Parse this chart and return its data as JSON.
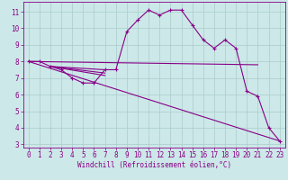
{
  "xlabel": "Windchill (Refroidissement éolien,°C)",
  "background_color": "#cce8e8",
  "grid_color": "#aacccc",
  "line_color": "#880088",
  "xlim": [
    -0.5,
    23.5
  ],
  "ylim": [
    2.8,
    11.6
  ],
  "yticks": [
    3,
    4,
    5,
    6,
    7,
    8,
    9,
    10,
    11
  ],
  "xticks": [
    0,
    1,
    2,
    3,
    4,
    5,
    6,
    7,
    8,
    9,
    10,
    11,
    12,
    13,
    14,
    15,
    16,
    17,
    18,
    19,
    20,
    21,
    22,
    23
  ],
  "line1_x": [
    0,
    1,
    2,
    3,
    4,
    5,
    6,
    7,
    8,
    9,
    10,
    11,
    12,
    13,
    14,
    15,
    16,
    17,
    18,
    19,
    20,
    21,
    22,
    23
  ],
  "line1_y": [
    8.0,
    8.0,
    7.7,
    7.5,
    7.0,
    6.7,
    6.7,
    7.5,
    7.5,
    9.8,
    10.5,
    11.1,
    10.8,
    11.1,
    11.1,
    10.2,
    9.3,
    8.8,
    9.3,
    8.8,
    6.2,
    5.9,
    4.0,
    3.2
  ],
  "line2_x": [
    0,
    21
  ],
  "line2_y": [
    8.0,
    7.8
  ],
  "line3_x": [
    0,
    23
  ],
  "line3_y": [
    8.0,
    3.2
  ],
  "line4_x": [
    2,
    7
  ],
  "line4_y": [
    7.7,
    7.5
  ],
  "line5_x": [
    2,
    7
  ],
  "line5_y": [
    7.7,
    7.3
  ],
  "line6_x": [
    2,
    7
  ],
  "line6_y": [
    7.7,
    7.15
  ],
  "tick_fontsize": 5.5,
  "xlabel_fontsize": 5.5
}
